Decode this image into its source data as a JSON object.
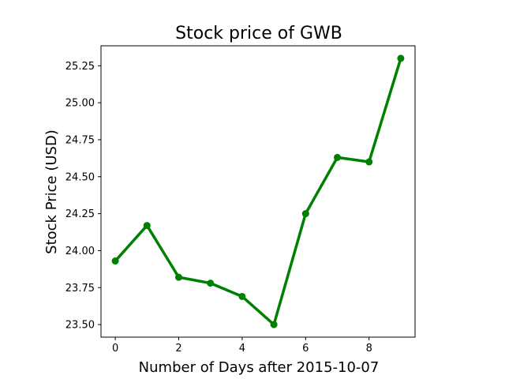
{
  "chart_data": {
    "type": "line",
    "title": "Stock price of GWB",
    "xlabel": "Number of Days after 2015-10-07",
    "ylabel": "Stock Price (USD)",
    "x": [
      0,
      1,
      2,
      3,
      4,
      5,
      6,
      7,
      8,
      9
    ],
    "series": [
      {
        "values": [
          23.93,
          24.17,
          23.82,
          23.78,
          23.69,
          23.5,
          24.25,
          24.63,
          24.6,
          25.3
        ],
        "color": "#008000",
        "marker": "circle"
      }
    ],
    "xlim": [
      -0.45,
      9.45
    ],
    "ylim": [
      23.415,
      25.385
    ],
    "xticks": [
      0,
      2,
      4,
      6,
      8
    ],
    "yticks": [
      23.5,
      23.75,
      24.0,
      24.25,
      24.5,
      24.75,
      25.0,
      25.25
    ],
    "grid": false,
    "legend": false
  }
}
